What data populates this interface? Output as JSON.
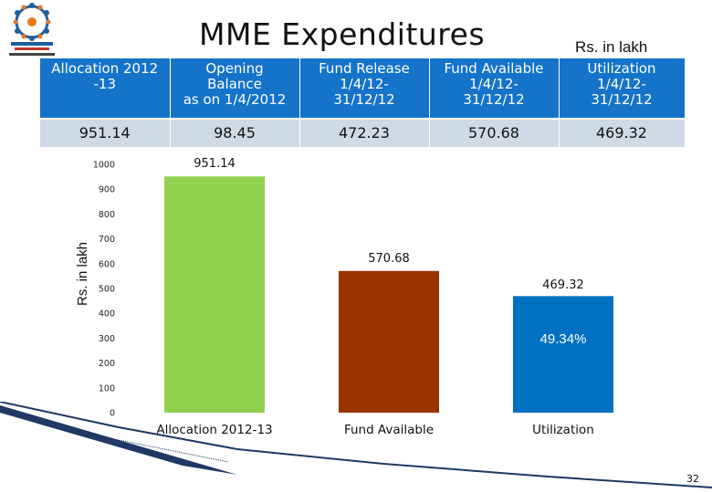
{
  "header": {
    "title": "MME Expenditures",
    "unit": "Rs. in lakh",
    "logo_icon": "wheel-of-children-logo-icon"
  },
  "summary_table": {
    "headers": [
      [
        "Allocation 2012",
        "-13"
      ],
      [
        "Opening",
        "Balance",
        "as on 1/4/2012"
      ],
      [
        "Fund Release",
        "1/4/12-",
        "31/12/12"
      ],
      [
        "Fund Available",
        "1/4/12-",
        "31/12/12"
      ],
      [
        "Utilization",
        "1/4/12-",
        "31/12/12"
      ]
    ],
    "values": [
      "951.14",
      "98.45",
      "472.23",
      "570.68",
      "469.32"
    ]
  },
  "chart_data": {
    "type": "bar",
    "categories": [
      "Allocation  2012-13",
      "Fund Available",
      "Utilization"
    ],
    "values": [
      951.14,
      570.68,
      469.32
    ],
    "data_labels": [
      "951.14",
      "570.68",
      "469.32"
    ],
    "bar_colors": [
      "#92d050",
      "#993300",
      "#0070c0"
    ],
    "ylabel": "Rs. in lakh",
    "ylim": [
      0,
      1000
    ],
    "yticks": [
      0,
      100,
      200,
      300,
      400,
      500,
      600,
      700,
      800,
      900,
      1000
    ],
    "annotation": "49.34%",
    "grid": false
  },
  "page": {
    "number": "32"
  },
  "colors": {
    "header_blue": "#1573c9",
    "row_gray": "#d0d9e6",
    "accent_navy": "#1f3864"
  }
}
